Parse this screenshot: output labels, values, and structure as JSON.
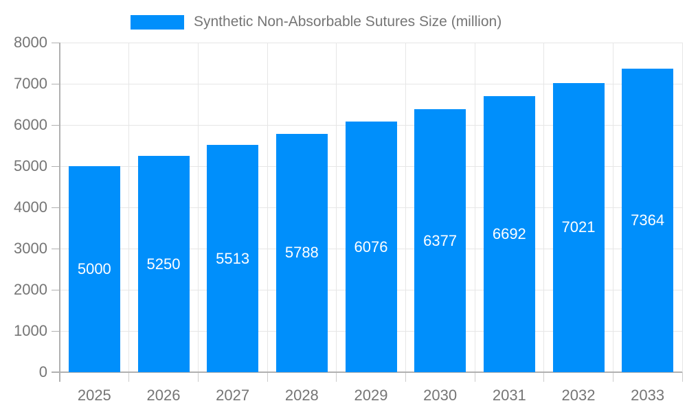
{
  "chart_data": {
    "type": "bar",
    "title": "Synthetic Non-Absorbable Sutures Size (million)",
    "series": [
      {
        "name": "Synthetic Non-Absorbable Sutures Size (million)",
        "values": [
          5000,
          5250,
          5513,
          5788,
          6076,
          6377,
          6692,
          7021,
          7364
        ]
      }
    ],
    "categories": [
      "2025",
      "2026",
      "2027",
      "2028",
      "2029",
      "2030",
      "2031",
      "2032",
      "2033"
    ],
    "values": [
      5000,
      5250,
      5513,
      5788,
      6076,
      6377,
      6692,
      7021,
      7364
    ],
    "xlabel": "",
    "ylabel": "",
    "ylim": [
      0,
      8000
    ],
    "yticks": [
      0,
      1000,
      2000,
      3000,
      4000,
      5000,
      6000,
      7000,
      8000
    ],
    "grid": true,
    "legend_position": "top-center",
    "bar_value_labels": "centered-inside-white",
    "colors": {
      "bar": "#008FFB",
      "bar_label": "#FFFFFF",
      "axis_text": "#757575",
      "gridline": "#E6E6E6",
      "axis_line": "#B0B0B0",
      "x_tick": "#CCCCCC",
      "background": "#FFFFFF"
    }
  }
}
